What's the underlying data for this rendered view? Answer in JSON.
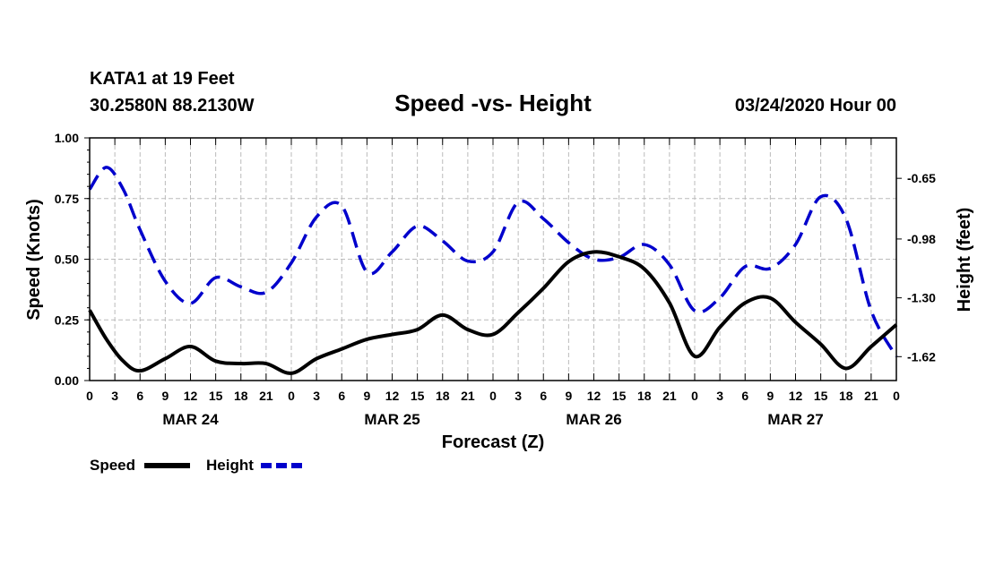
{
  "header": {
    "station": "KATA1 at 19 Feet",
    "coords": "30.2580N 88.2130W",
    "title": "Speed -vs- Height",
    "datetime": "03/24/2020 Hour 00"
  },
  "chart_data": {
    "type": "line",
    "title": "Speed -vs- Height",
    "xlabel": "Forecast (Z)",
    "ylabel": "Speed (Knots)",
    "y2label": "Height (feet)",
    "x_unit": "forecast hour (0 = 03/24 00Z)",
    "xlim": [
      0,
      96
    ],
    "ylim": [
      0,
      1
    ],
    "y2lim": [
      -1.75,
      -0.43
    ],
    "grid": true,
    "x_tick_labels": [
      "0",
      "3",
      "6",
      "9",
      "12",
      "15",
      "18",
      "21",
      "0",
      "3",
      "6",
      "9",
      "12",
      "15",
      "18",
      "21",
      "0",
      "3",
      "6",
      "9",
      "12",
      "15",
      "18",
      "21",
      "0",
      "3",
      "6",
      "9",
      "12",
      "15",
      "18",
      "21",
      "0"
    ],
    "y_tick_labels": [
      "0.00",
      "0.25",
      "0.50",
      "0.75",
      "1.00"
    ],
    "y_tick_values": [
      0,
      0.25,
      0.5,
      0.75,
      1.0
    ],
    "y2_tick_labels": [
      "-1.62",
      "-1.30",
      "-0.98",
      "-0.65"
    ],
    "y2_tick_values": [
      -1.62,
      -1.3,
      -0.98,
      -0.65
    ],
    "day_labels": [
      {
        "text": "MAR 24",
        "hour": 12
      },
      {
        "text": "MAR 25",
        "hour": 36
      },
      {
        "text": "MAR 26",
        "hour": 60
      },
      {
        "text": "MAR 27",
        "hour": 84
      }
    ],
    "legend": [
      {
        "name": "Speed",
        "color": "#000000",
        "style": "solid"
      },
      {
        "name": "Height",
        "color": "#0000cc",
        "style": "dashed"
      }
    ],
    "series": [
      {
        "name": "Speed",
        "axis": "left",
        "color": "#000000",
        "x": [
          0,
          2,
          4,
          6,
          9,
          12,
          15,
          18,
          21,
          24,
          27,
          30,
          33,
          36,
          39,
          42,
          45,
          48,
          51,
          54,
          57,
          60,
          63,
          66,
          69,
          72,
          75,
          78,
          81,
          84,
          87,
          90,
          93,
          96
        ],
        "values": [
          0.29,
          0.17,
          0.08,
          0.04,
          0.09,
          0.14,
          0.08,
          0.07,
          0.07,
          0.03,
          0.09,
          0.13,
          0.17,
          0.19,
          0.21,
          0.27,
          0.21,
          0.19,
          0.28,
          0.38,
          0.49,
          0.53,
          0.51,
          0.46,
          0.32,
          0.1,
          0.22,
          0.32,
          0.34,
          0.24,
          0.15,
          0.05,
          0.14,
          0.23
        ]
      },
      {
        "name": "Height",
        "axis": "right",
        "color": "#0000cc",
        "x": [
          0,
          2,
          4,
          6,
          9,
          12,
          15,
          18,
          21,
          24,
          27,
          30,
          33,
          36,
          39,
          42,
          45,
          48,
          51,
          54,
          57,
          60,
          63,
          66,
          69,
          72,
          75,
          78,
          81,
          84,
          87,
          90,
          93,
          96
        ],
        "values": [
          -0.71,
          -0.59,
          -0.71,
          -0.93,
          -1.21,
          -1.33,
          -1.19,
          -1.24,
          -1.27,
          -1.11,
          -0.86,
          -0.8,
          -1.16,
          -1.05,
          -0.91,
          -0.99,
          -1.1,
          -1.05,
          -0.78,
          -0.87,
          -1.0,
          -1.09,
          -1.08,
          -1.01,
          -1.12,
          -1.37,
          -1.3,
          -1.13,
          -1.14,
          -1.01,
          -0.75,
          -0.87,
          -1.37,
          -1.62
        ]
      }
    ]
  }
}
